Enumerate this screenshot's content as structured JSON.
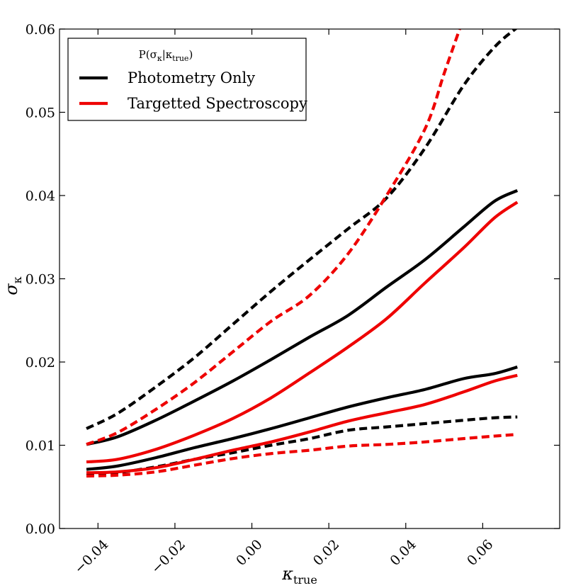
{
  "chart_data": {
    "type": "line",
    "title": "",
    "xlabel": "κ",
    "xlabel_sub": "true",
    "ylabel": "σ",
    "ylabel_sub": "κ",
    "xlim": [
      -0.05,
      0.08
    ],
    "ylim": [
      0.0,
      0.06
    ],
    "xticks": [
      -0.04,
      -0.02,
      0.0,
      0.02,
      0.04,
      0.06
    ],
    "xtick_labels": [
      "−0.04",
      "−0.02",
      "0.00",
      "0.02",
      "0.04",
      "0.06"
    ],
    "yticks": [
      0.0,
      0.01,
      0.02,
      0.03,
      0.04,
      0.05,
      0.06
    ],
    "ytick_labels": [
      "0.00",
      "0.01",
      "0.02",
      "0.03",
      "0.04",
      "0.05",
      "0.06"
    ],
    "grid": false,
    "legend": {
      "title": "P(σκ|κtrue)",
      "placement": "top-left",
      "entries": [
        {
          "label": "Photometry Only",
          "color": "#000000"
        },
        {
          "label": "Targetted Spectroscopy",
          "color": "#ee0000"
        }
      ]
    },
    "series": [
      {
        "name": "Photometry Only - upper dashed",
        "color": "#000000",
        "style": "dashed",
        "x": [
          -0.043,
          -0.035,
          -0.025,
          -0.015,
          -0.005,
          0.005,
          0.015,
          0.025,
          0.035,
          0.045,
          0.055,
          0.063,
          0.069
        ],
        "y": [
          0.012,
          0.0138,
          0.017,
          0.0205,
          0.0245,
          0.0285,
          0.0323,
          0.036,
          0.0397,
          0.0457,
          0.0532,
          0.0578,
          0.0602
        ]
      },
      {
        "name": "Photometry Only - upper solid",
        "color": "#000000",
        "style": "solid",
        "x": [
          -0.043,
          -0.035,
          -0.025,
          -0.015,
          -0.005,
          0.005,
          0.015,
          0.025,
          0.035,
          0.045,
          0.055,
          0.063,
          0.069
        ],
        "y": [
          0.0101,
          0.011,
          0.013,
          0.0153,
          0.0177,
          0.0203,
          0.023,
          0.0256,
          0.029,
          0.0323,
          0.0362,
          0.0393,
          0.0406
        ]
      },
      {
        "name": "Photometry Only - lower solid",
        "color": "#000000",
        "style": "solid",
        "x": [
          -0.043,
          -0.035,
          -0.025,
          -0.015,
          -0.005,
          0.005,
          0.015,
          0.025,
          0.035,
          0.045,
          0.055,
          0.063,
          0.069
        ],
        "y": [
          0.0071,
          0.0075,
          0.0085,
          0.0097,
          0.0108,
          0.012,
          0.0133,
          0.0146,
          0.0157,
          0.0167,
          0.018,
          0.0186,
          0.0194
        ]
      },
      {
        "name": "Photometry Only - lower dashed",
        "color": "#000000",
        "style": "dashed",
        "x": [
          -0.043,
          -0.035,
          -0.025,
          -0.015,
          -0.005,
          0.005,
          0.015,
          0.025,
          0.035,
          0.045,
          0.055,
          0.063,
          0.069
        ],
        "y": [
          0.0064,
          0.0067,
          0.0074,
          0.0083,
          0.0091,
          0.01,
          0.0108,
          0.0118,
          0.0122,
          0.0126,
          0.013,
          0.0133,
          0.0134
        ]
      },
      {
        "name": "Targetted Spectroscopy - upper dashed",
        "color": "#ee0000",
        "style": "dashed",
        "x": [
          -0.043,
          -0.035,
          -0.025,
          -0.015,
          -0.005,
          0.005,
          0.015,
          0.025,
          0.035,
          0.045,
          0.05,
          0.054
        ],
        "y": [
          0.0101,
          0.0115,
          0.0143,
          0.0175,
          0.0212,
          0.0249,
          0.028,
          0.033,
          0.04,
          0.048,
          0.0547,
          0.06
        ]
      },
      {
        "name": "Targetted Spectroscopy - upper solid",
        "color": "#ee0000",
        "style": "solid",
        "x": [
          -0.043,
          -0.035,
          -0.025,
          -0.015,
          -0.005,
          0.005,
          0.015,
          0.025,
          0.035,
          0.045,
          0.055,
          0.063,
          0.069
        ],
        "y": [
          0.008,
          0.0083,
          0.0095,
          0.0112,
          0.0132,
          0.0157,
          0.0187,
          0.0218,
          0.0252,
          0.0295,
          0.0337,
          0.0373,
          0.0392
        ]
      },
      {
        "name": "Targetted Spectroscopy - lower solid",
        "color": "#ee0000",
        "style": "solid",
        "x": [
          -0.043,
          -0.035,
          -0.025,
          -0.015,
          -0.005,
          0.005,
          0.015,
          0.025,
          0.035,
          0.045,
          0.055,
          0.063,
          0.069
        ],
        "y": [
          0.0067,
          0.0068,
          0.0073,
          0.0083,
          0.0094,
          0.0104,
          0.0116,
          0.0129,
          0.0139,
          0.0149,
          0.0164,
          0.0177,
          0.0184
        ]
      },
      {
        "name": "Targetted Spectroscopy - lower dashed",
        "color": "#ee0000",
        "style": "dashed",
        "x": [
          -0.043,
          -0.035,
          -0.025,
          -0.015,
          -0.005,
          0.005,
          0.015,
          0.025,
          0.035,
          0.045,
          0.055,
          0.063,
          0.069
        ],
        "y": [
          0.0063,
          0.0064,
          0.0068,
          0.0076,
          0.0084,
          0.009,
          0.0094,
          0.0099,
          0.0101,
          0.0104,
          0.0108,
          0.0111,
          0.0113
        ]
      }
    ]
  }
}
